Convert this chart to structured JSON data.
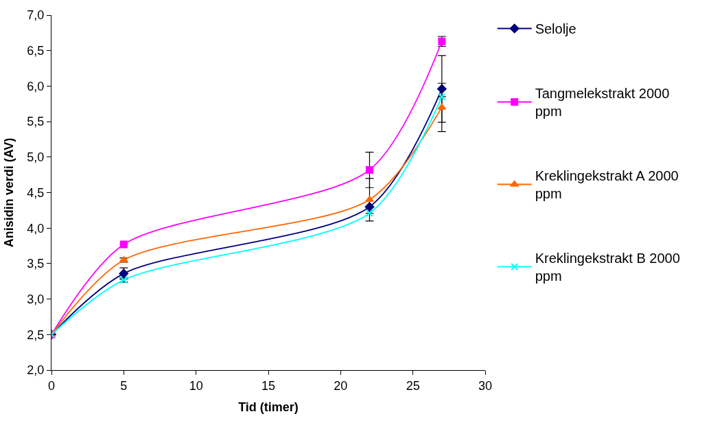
{
  "chart_data": {
    "type": "line",
    "xlabel": "Tid (timer)",
    "ylabel": "Anisidin verdi (AV)",
    "x": [
      0,
      5,
      22,
      27
    ],
    "series": [
      {
        "name": "Selolje",
        "color": "#000080",
        "marker": "diamond",
        "values": [
          2.5,
          3.36,
          4.3,
          5.96
        ],
        "errors": [
          null,
          0.08,
          null,
          0.47
        ]
      },
      {
        "name": "Tangmelekstrakt 2000 ppm",
        "color": "#ff00ff",
        "marker": "square",
        "values": [
          2.5,
          3.77,
          4.82,
          6.63
        ],
        "errors": [
          null,
          null,
          0.25,
          0.07
        ]
      },
      {
        "name": "Kreklingekstrakt A 2000 ppm",
        "color": "#ff6600",
        "marker": "triangle",
        "values": [
          2.5,
          3.55,
          4.4,
          5.7
        ],
        "errors": [
          null,
          0.03,
          0.3,
          0.34
        ]
      },
      {
        "name": "Kreklingekstrakt B 2000 ppm",
        "color": "#00ffff",
        "marker": "cross",
        "values": [
          2.5,
          3.27,
          4.21,
          5.85
        ],
        "errors": [
          null,
          0.03,
          null,
          null
        ]
      }
    ],
    "xlim": [
      0,
      30
    ],
    "xticks": [
      0,
      5,
      10,
      15,
      20,
      25,
      30
    ],
    "ylim": [
      2.0,
      7.0
    ],
    "yticks": [
      {
        "value": 2.0,
        "label": "2,0"
      },
      {
        "value": 2.5,
        "label": "2,5"
      },
      {
        "value": 3.0,
        "label": "3,0"
      },
      {
        "value": 3.5,
        "label": "3,5"
      },
      {
        "value": 4.0,
        "label": "4,0"
      },
      {
        "value": 4.5,
        "label": "4,5"
      },
      {
        "value": 5.0,
        "label": "5,0"
      },
      {
        "value": 5.5,
        "label": "5,5"
      },
      {
        "value": 6.0,
        "label": "6,0"
      },
      {
        "value": 6.5,
        "label": "6,5"
      },
      {
        "value": 7.0,
        "label": "7,0"
      }
    ],
    "legend": "right"
  }
}
